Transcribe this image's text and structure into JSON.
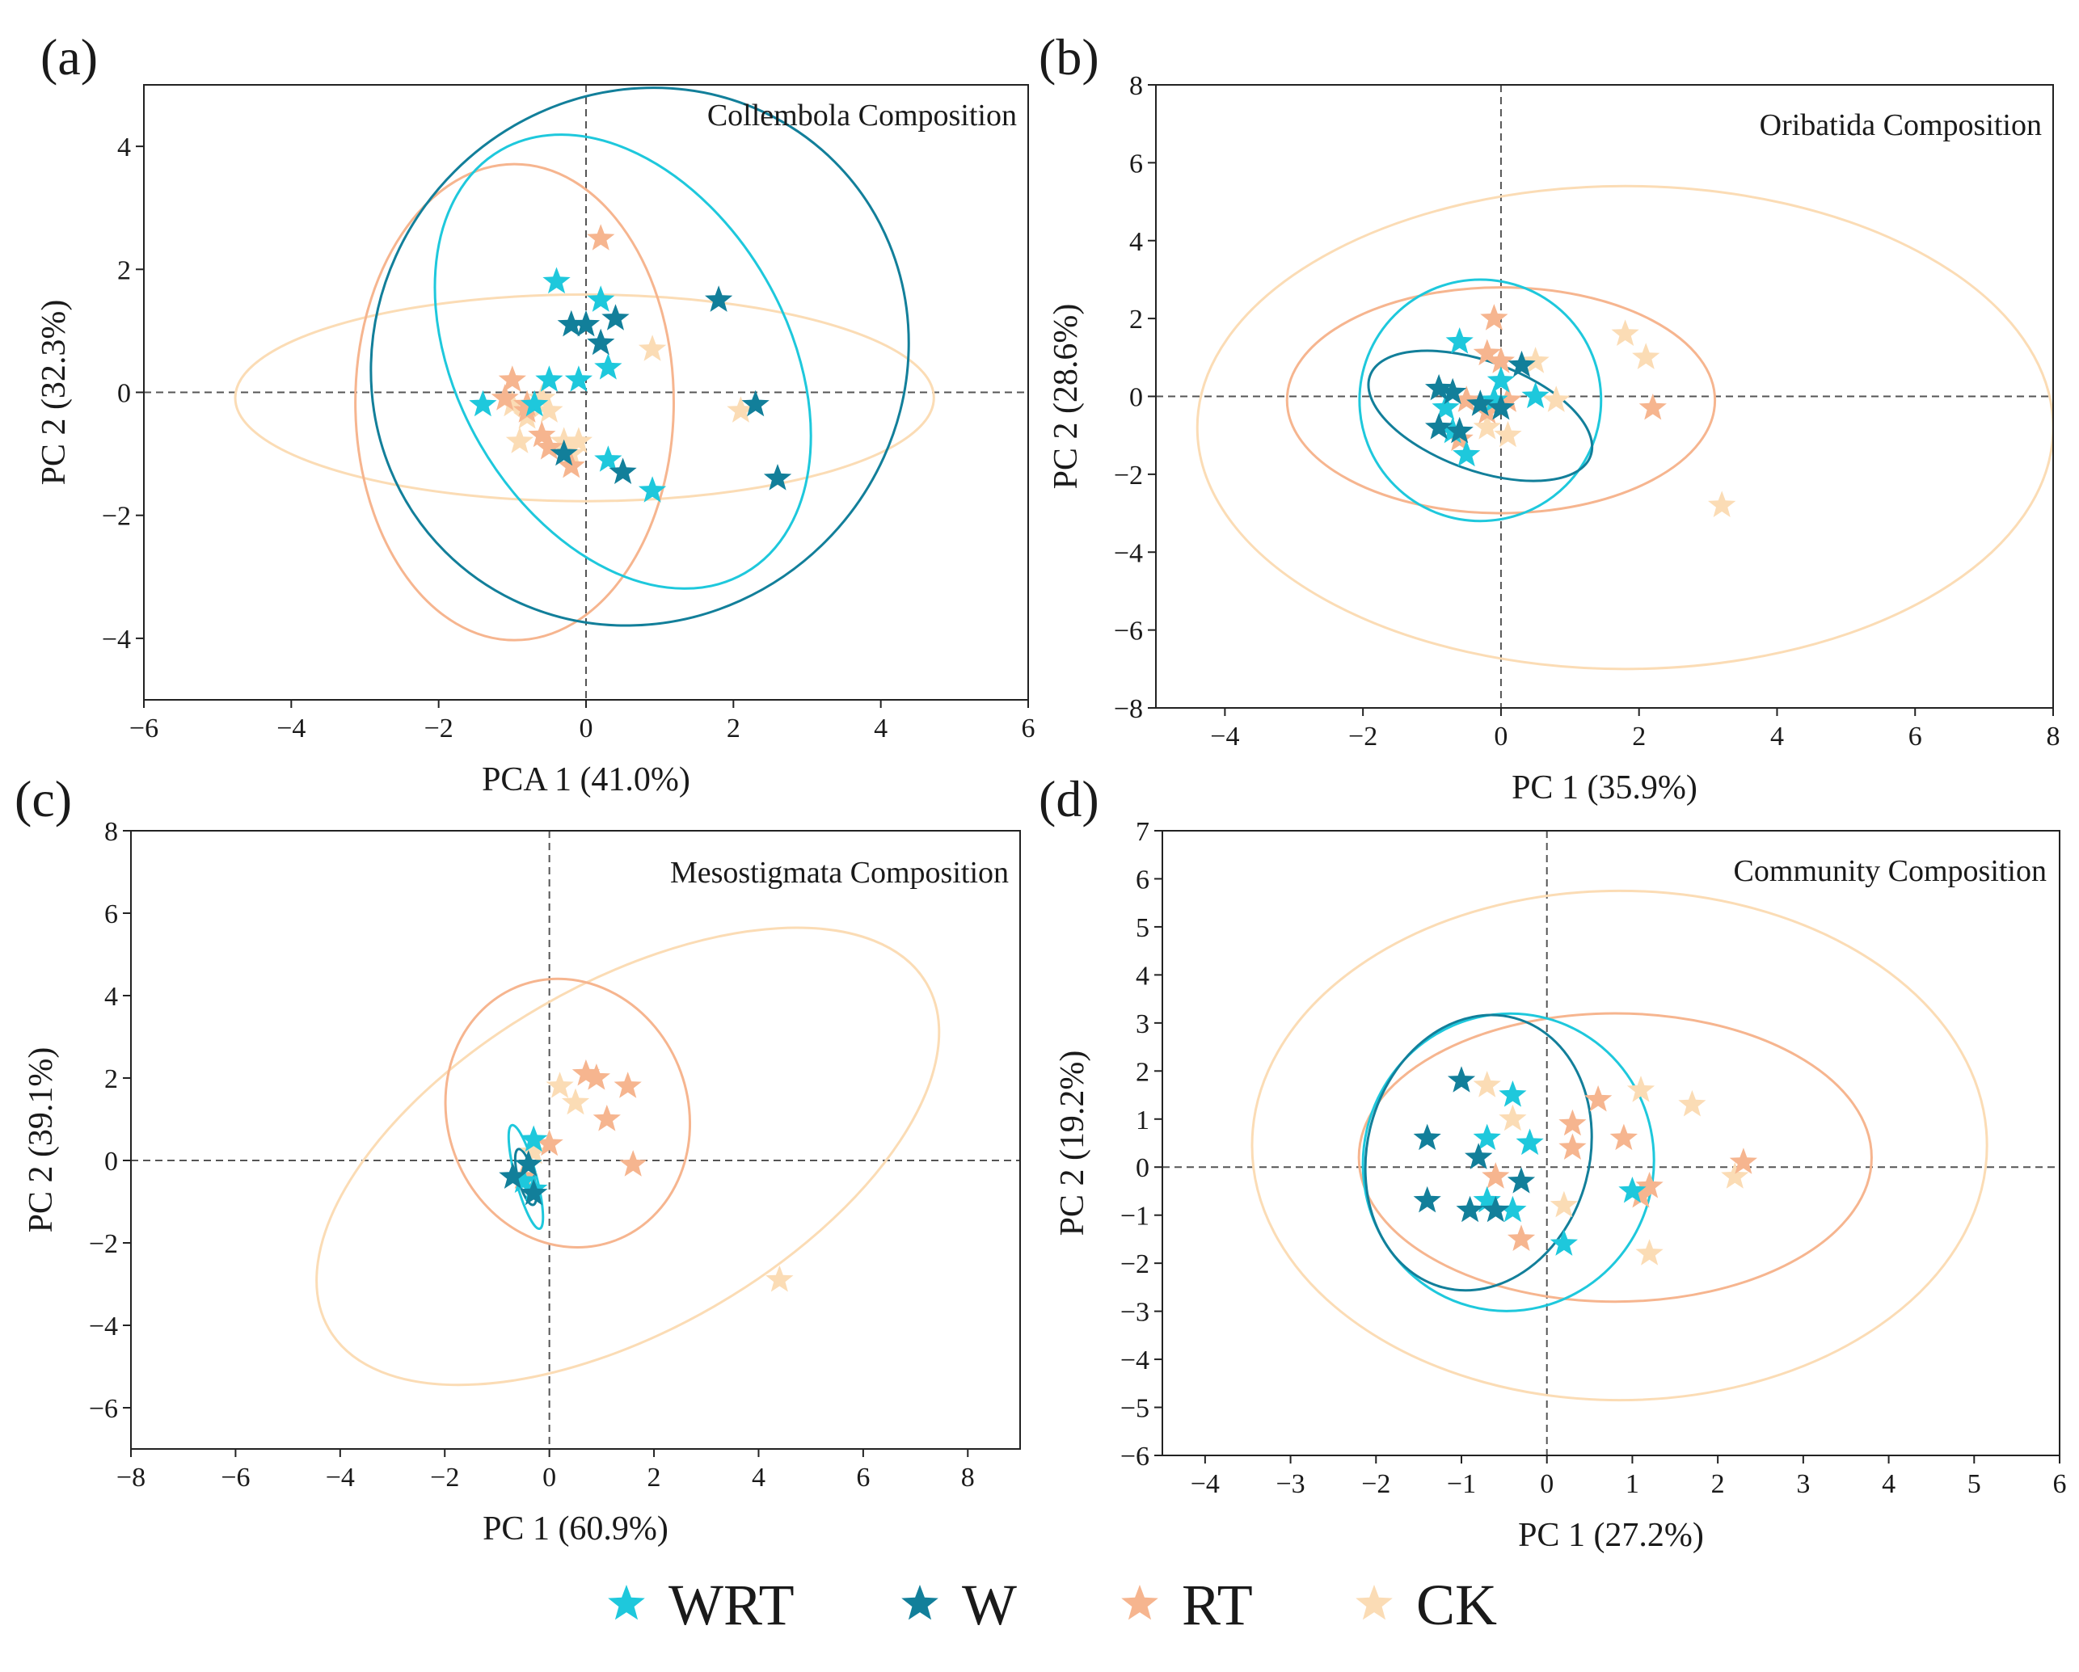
{
  "figure": {
    "legend": [
      {
        "key": "WRT",
        "label": "WRT",
        "color": "#1ec8dc"
      },
      {
        "key": "W",
        "label": "W",
        "color": "#127f9a"
      },
      {
        "key": "RT",
        "label": "RT",
        "color": "#f6b58f"
      },
      {
        "key": "CK",
        "label": "CK",
        "color": "#fbdcb5"
      }
    ]
  },
  "chart_data": [
    {
      "type": "scatter",
      "panel": "(a)",
      "title": "Collembola Composition",
      "xlabel": "PCA 1 (41.0%)",
      "ylabel": "PC 2 (32.3%)",
      "xlim": [
        -6,
        6
      ],
      "ylim": [
        -5,
        5
      ],
      "xticks": [
        -6,
        -4,
        -2,
        0,
        2,
        4,
        6
      ],
      "yticks": [
        -4,
        -2,
        0,
        2,
        4
      ],
      "xtick_labels": [
        "−6",
        "−4",
        "−2",
        "0",
        "2",
        "4",
        "6"
      ],
      "ytick_labels": [
        "−4",
        "−2",
        "0",
        "2",
        "4"
      ],
      "ellipses": [
        {
          "group": "CK",
          "cx": -0.02,
          "cy": -0.09,
          "rx": 4.74,
          "ry": 1.68,
          "angle": 0
        },
        {
          "group": "RT",
          "cx": -0.97,
          "cy": -0.16,
          "rx": 2.16,
          "ry": 3.87,
          "angle": 0
        },
        {
          "group": "WRT",
          "cx": 0.5,
          "cy": 0.5,
          "rx": 2.24,
          "ry": 3.97,
          "angle": 30
        },
        {
          "group": "W",
          "cx": 0.73,
          "cy": 0.58,
          "rx": 3.74,
          "ry": 4.26,
          "angle": 45
        }
      ],
      "series": [
        {
          "name": "CK",
          "points": [
            [
              -1.0,
              -0.2
            ],
            [
              -0.8,
              -0.4
            ],
            [
              -0.6,
              -0.1
            ],
            [
              -0.5,
              -0.3
            ],
            [
              -0.9,
              -0.8
            ],
            [
              -0.3,
              -0.8
            ],
            [
              -0.2,
              -1.0
            ],
            [
              -0.1,
              -0.8
            ],
            [
              0.9,
              0.7
            ],
            [
              2.1,
              -0.3
            ]
          ]
        },
        {
          "name": "RT",
          "points": [
            [
              -1.0,
              0.2
            ],
            [
              -1.1,
              -0.1
            ],
            [
              -0.8,
              -0.3
            ],
            [
              -0.6,
              -0.7
            ],
            [
              -0.5,
              -0.9
            ],
            [
              -0.2,
              -1.2
            ],
            [
              0.2,
              2.5
            ],
            [
              -0.8,
              -0.2
            ]
          ]
        },
        {
          "name": "WRT",
          "points": [
            [
              -1.4,
              -0.2
            ],
            [
              -0.4,
              1.8
            ],
            [
              -0.5,
              0.2
            ],
            [
              -0.1,
              0.2
            ],
            [
              0.2,
              1.5
            ],
            [
              0.3,
              0.4
            ],
            [
              0.3,
              -1.1
            ],
            [
              0.9,
              -1.6
            ],
            [
              -0.7,
              -0.2
            ]
          ]
        },
        {
          "name": "W",
          "points": [
            [
              -0.2,
              1.1
            ],
            [
              0.0,
              1.1
            ],
            [
              0.2,
              0.8
            ],
            [
              0.4,
              1.2
            ],
            [
              1.8,
              1.5
            ],
            [
              2.3,
              -0.2
            ],
            [
              2.6,
              -1.4
            ],
            [
              0.5,
              -1.3
            ],
            [
              -0.3,
              -1.0
            ]
          ]
        }
      ]
    },
    {
      "type": "scatter",
      "panel": "(b)",
      "title": "Oribatida Composition",
      "xlabel": "PC 1 (35.9%)",
      "ylabel": "PC 2 (28.6%)",
      "xlim": [
        -5,
        8
      ],
      "ylim": [
        -8,
        8
      ],
      "xticks": [
        -4,
        -2,
        0,
        2,
        4,
        6,
        8
      ],
      "yticks": [
        -8,
        -6,
        -4,
        -2,
        0,
        2,
        4,
        6,
        8
      ],
      "xtick_labels": [
        "−4",
        "−2",
        "0",
        "2",
        "4",
        "6",
        "8"
      ],
      "ytick_labels": [
        "−8",
        "−6",
        "−4",
        "−2",
        "0",
        "2",
        "4",
        "6",
        "8"
      ],
      "ellipses": [
        {
          "group": "CK",
          "cx": 1.8,
          "cy": -0.8,
          "rx": 6.2,
          "ry": 6.2,
          "angle": 0
        },
        {
          "group": "RT",
          "cx": 0.0,
          "cy": -0.1,
          "rx": 3.1,
          "ry": 2.9,
          "angle": 0
        },
        {
          "group": "WRT",
          "cx": -0.3,
          "cy": -0.1,
          "rx": 1.75,
          "ry": 3.1,
          "angle": 0
        },
        {
          "group": "W",
          "cx": -0.3,
          "cy": -0.5,
          "rx": 1.7,
          "ry": 1.4,
          "angle": -20
        }
      ],
      "series": [
        {
          "name": "CK",
          "points": [
            [
              1.8,
              1.6
            ],
            [
              2.1,
              1.0
            ],
            [
              3.2,
              -2.8
            ],
            [
              0.5,
              0.9
            ],
            [
              0.8,
              -0.1
            ],
            [
              -0.2,
              -0.8
            ],
            [
              0.1,
              -1.0
            ]
          ]
        },
        {
          "name": "RT",
          "points": [
            [
              -0.1,
              2.0
            ],
            [
              -0.2,
              1.1
            ],
            [
              0.0,
              0.9
            ],
            [
              2.2,
              -0.3
            ],
            [
              -0.5,
              -0.1
            ],
            [
              -0.2,
              -0.4
            ],
            [
              0.1,
              -0.1
            ],
            [
              -0.6,
              -1.1
            ]
          ]
        },
        {
          "name": "WRT",
          "points": [
            [
              -0.6,
              1.4
            ],
            [
              0.0,
              0.4
            ],
            [
              0.5,
              0.0
            ],
            [
              -0.1,
              -0.1
            ],
            [
              -0.7,
              -0.9
            ],
            [
              -0.5,
              -1.5
            ],
            [
              -0.8,
              -0.3
            ]
          ]
        },
        {
          "name": "W",
          "points": [
            [
              -0.9,
              0.2
            ],
            [
              -0.7,
              0.1
            ],
            [
              -0.3,
              -0.2
            ],
            [
              -0.9,
              -0.8
            ],
            [
              -0.6,
              -0.9
            ],
            [
              0.0,
              -0.3
            ],
            [
              0.3,
              0.8
            ]
          ]
        }
      ]
    },
    {
      "type": "scatter",
      "panel": "(c)",
      "title": "Mesostigmata Composition",
      "xlabel": "PC 1 (60.9%)",
      "ylabel": "PC 2 (39.1%)",
      "xlim": [
        -8,
        9
      ],
      "ylim": [
        -7,
        8
      ],
      "xticks": [
        -8,
        -6,
        -4,
        -2,
        0,
        2,
        4,
        6,
        8
      ],
      "yticks": [
        -6,
        -4,
        -2,
        0,
        2,
        4,
        6,
        8
      ],
      "xtick_labels": [
        "−8",
        "−6",
        "−4",
        "−2",
        "0",
        "2",
        "4",
        "6",
        "8"
      ],
      "ytick_labels": [
        "−6",
        "−4",
        "−2",
        "0",
        "2",
        "4",
        "6",
        "8"
      ],
      "ellipses": [
        {
          "group": "CK",
          "cx": 1.5,
          "cy": 0.1,
          "rx": 6.6,
          "ry": 4.2,
          "angle": 30
        },
        {
          "group": "RT",
          "cx": 0.35,
          "cy": 1.15,
          "rx": 2.3,
          "ry": 3.3,
          "angle": 20
        },
        {
          "group": "WRT",
          "cx": -0.45,
          "cy": -0.4,
          "rx": 0.2,
          "ry": 1.3,
          "angle": 15
        },
        {
          "group": "W",
          "cx": -0.45,
          "cy": -0.4,
          "rx": 0.15,
          "ry": 0.7,
          "angle": 15
        }
      ],
      "series": [
        {
          "name": "CK",
          "points": [
            [
              0.2,
              1.8
            ],
            [
              0.5,
              1.4
            ],
            [
              4.4,
              -2.9
            ],
            [
              -0.3,
              0.2
            ]
          ]
        },
        {
          "name": "RT",
          "points": [
            [
              0.7,
              2.1
            ],
            [
              0.9,
              2.0
            ],
            [
              1.5,
              1.8
            ],
            [
              1.1,
              1.0
            ],
            [
              1.6,
              -0.1
            ],
            [
              0.0,
              0.4
            ],
            [
              -0.5,
              -0.4
            ]
          ]
        },
        {
          "name": "WRT",
          "points": [
            [
              -0.3,
              0.5
            ],
            [
              -0.5,
              -0.5
            ],
            [
              -0.3,
              -0.7
            ]
          ]
        },
        {
          "name": "W",
          "points": [
            [
              -0.7,
              -0.4
            ],
            [
              -0.4,
              -0.1
            ],
            [
              -0.3,
              -0.8
            ]
          ]
        }
      ]
    },
    {
      "type": "scatter",
      "panel": "(d)",
      "title": "Community Composition",
      "xlabel": "PC 1 (27.2%)",
      "ylabel": "PC 2 (19.2%)",
      "xlim": [
        -4.5,
        6
      ],
      "ylim": [
        -6,
        7
      ],
      "xticks": [
        -4,
        -3,
        -2,
        -1,
        0,
        1,
        2,
        3,
        4,
        5,
        6
      ],
      "yticks": [
        -6,
        -5,
        -4,
        -3,
        -2,
        -1,
        0,
        1,
        2,
        3,
        4,
        5,
        6,
        7
      ],
      "xtick_labels": [
        "−4",
        "−3",
        "−2",
        "−1",
        "0",
        "1",
        "2",
        "3",
        "4",
        "5",
        "6"
      ],
      "ytick_labels": [
        "−6",
        "−5",
        "−4",
        "−3",
        "−2",
        "−1",
        "0",
        "1",
        "2",
        "3",
        "4",
        "5",
        "6",
        "7"
      ],
      "ellipses": [
        {
          "group": "CK",
          "cx": 0.85,
          "cy": 0.45,
          "rx": 4.3,
          "ry": 5.3,
          "angle": 0
        },
        {
          "group": "RT",
          "cx": 0.8,
          "cy": 0.2,
          "rx": 3.0,
          "ry": 3.0,
          "angle": 0
        },
        {
          "group": "WRT",
          "cx": -0.45,
          "cy": 0.1,
          "rx": 1.7,
          "ry": 3.1,
          "angle": -15
        },
        {
          "group": "W",
          "cx": -0.8,
          "cy": 0.3,
          "rx": 1.3,
          "ry": 2.9,
          "angle": -15
        }
      ],
      "series": [
        {
          "name": "CK",
          "points": [
            [
              -0.7,
              1.7
            ],
            [
              1.1,
              1.6
            ],
            [
              1.7,
              1.3
            ],
            [
              2.2,
              -0.2
            ],
            [
              1.2,
              -1.8
            ],
            [
              0.2,
              -0.8
            ],
            [
              -0.4,
              1.0
            ]
          ]
        },
        {
          "name": "RT",
          "points": [
            [
              0.6,
              1.4
            ],
            [
              0.9,
              0.6
            ],
            [
              0.3,
              0.9
            ],
            [
              0.3,
              0.4
            ],
            [
              1.2,
              -0.4
            ],
            [
              1.1,
              -0.6
            ],
            [
              2.3,
              0.1
            ],
            [
              -0.3,
              -1.5
            ],
            [
              -0.6,
              -0.2
            ]
          ]
        },
        {
          "name": "WRT",
          "points": [
            [
              -0.4,
              1.5
            ],
            [
              -0.7,
              0.6
            ],
            [
              -0.2,
              0.5
            ],
            [
              -0.4,
              -0.9
            ],
            [
              1.0,
              -0.5
            ],
            [
              0.2,
              -1.6
            ],
            [
              -0.7,
              -0.7
            ]
          ]
        },
        {
          "name": "W",
          "points": [
            [
              -1.0,
              1.8
            ],
            [
              -1.4,
              0.6
            ],
            [
              -0.8,
              0.2
            ],
            [
              -1.4,
              -0.7
            ],
            [
              -0.6,
              -0.9
            ],
            [
              -0.9,
              -0.9
            ],
            [
              -0.3,
              -0.3
            ]
          ]
        }
      ]
    }
  ]
}
